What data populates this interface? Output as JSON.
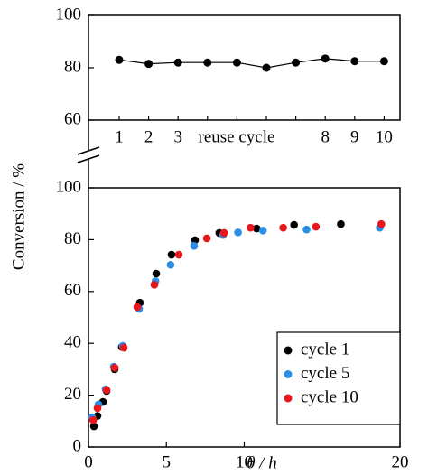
{
  "chart_data": [
    {
      "type": "line",
      "xlabel": "reuse cycle",
      "categories": [
        "1",
        "2",
        "3",
        null,
        null,
        null,
        null,
        "8",
        "9",
        "10"
      ],
      "values": [
        83,
        81.5,
        82,
        82,
        82,
        80,
        82,
        83.5,
        82.5,
        82.5
      ],
      "color": "#000000",
      "ylim": [
        60,
        100
      ],
      "yticks": [
        60,
        80,
        100
      ]
    },
    {
      "type": "scatter",
      "xlabel": "θ / h",
      "ylabel": "Conversion / %",
      "xlim": [
        0,
        20
      ],
      "xticks": [
        0,
        5,
        10,
        20
      ],
      "ylim": [
        0,
        100
      ],
      "yticks": [
        0,
        20,
        40,
        60,
        80,
        100
      ],
      "legend": "lower right",
      "series": [
        {
          "name": "cycle 1",
          "color": "#000000",
          "x": [
            0.35,
            0.58,
            0.93,
            1.16,
            1.68,
            2.14,
            3.3,
            4.35,
            5.33,
            6.84,
            8.4,
            10.8,
            13.2,
            16.2
          ],
          "y": [
            8,
            12,
            17.4,
            21.6,
            30,
            38.6,
            55.7,
            66.9,
            74.2,
            79.8,
            82.6,
            84.3,
            85.7,
            86
          ]
        },
        {
          "name": "cycle 5",
          "color": "#2b8ee6",
          "x": [
            0.23,
            0.64,
            1.1,
            1.62,
            2.2,
            3.25,
            4.3,
            5.27,
            6.78,
            8.64,
            9.6,
            11.2,
            14,
            18.7
          ],
          "y": [
            11.5,
            16.4,
            22.3,
            31,
            39,
            53.3,
            64,
            70.3,
            77.6,
            81.8,
            82.8,
            83.5,
            83.9,
            84.6
          ]
        },
        {
          "name": "cycle 10",
          "color": "#e8171b",
          "x": [
            0.3,
            0.58,
            1.16,
            1.68,
            2.26,
            3.13,
            4.23,
            5.8,
            7.6,
            8.7,
            10.4,
            12.5,
            14.6,
            18.8
          ],
          "y": [
            10.4,
            15,
            22,
            30.6,
            38.3,
            54,
            62.6,
            74.2,
            80.5,
            82.6,
            84.6,
            84.6,
            85,
            86
          ]
        }
      ]
    }
  ]
}
